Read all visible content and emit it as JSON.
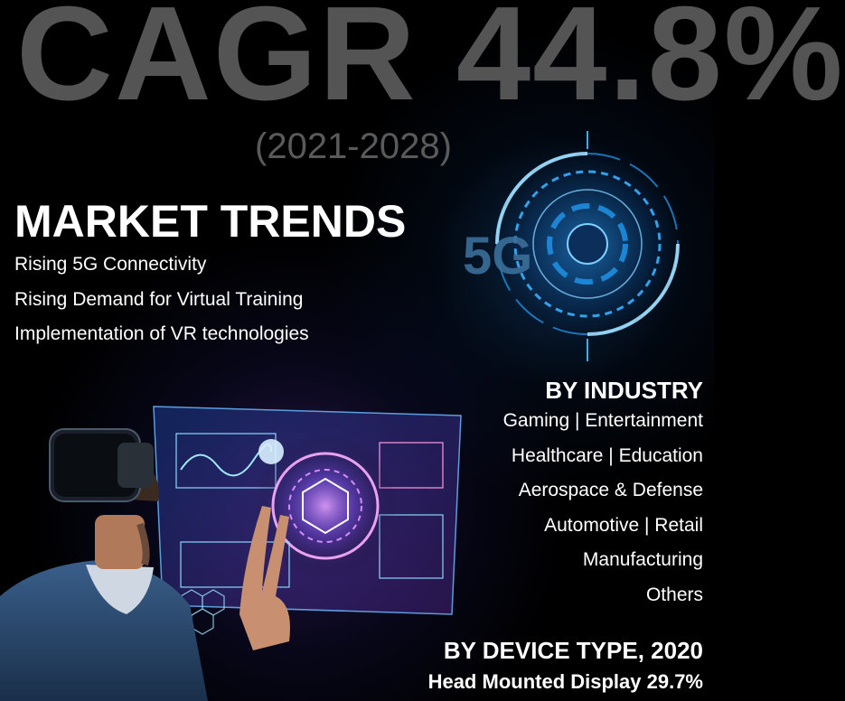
{
  "headline": "CAGR 44.8%",
  "period": "(2021-2028)",
  "market_trends": {
    "title": "MARKET TRENDS",
    "items": [
      "Rising 5G Connectivity",
      "Rising Demand for Virtual Training",
      "Implementation of VR technologies"
    ]
  },
  "graphic": {
    "badge": "5G"
  },
  "by_industry": {
    "title": "BY INDUSTRY",
    "items": [
      "Gaming  |  Entertainment",
      "Healthcare  |  Education",
      "Aerospace & Defense",
      "Automotive  |  Retail",
      "Manufacturing",
      "Others"
    ]
  },
  "by_device_type": {
    "title": "BY DEVICE TYPE, 2020",
    "value": "Head Mounted Display 29.7%"
  },
  "colors": {
    "background": "#000000",
    "headline": "#545454",
    "accent_blue": "#1e8ee0",
    "accent_purple": "#8a4fe0"
  }
}
